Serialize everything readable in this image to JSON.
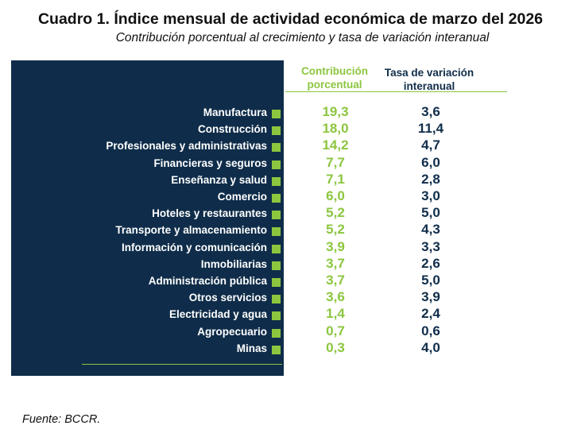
{
  "title": "Cuadro 1. Índice mensual de actividad económica de marzo del 2026",
  "subtitle": "Contribución porcentual al crecimiento y tasa de variación interanual",
  "source": "Fuente: BCCR.",
  "colors": {
    "panel": "#0f2d4a",
    "accent_green": "#8cc63f",
    "rate_text": "#0f2d4a"
  },
  "chart_data": {
    "type": "table",
    "title": "Cuadro 1. Índice mensual de actividad económica de marzo del 2026",
    "subtitle": "Contribución porcentual al crecimiento y tasa de variación interanual",
    "columns": [
      "Contribución porcentual",
      "Tasa de variación interanual"
    ],
    "rows": [
      {
        "label": "Manufactura",
        "contribucion": "19,3",
        "tasa": "3,6"
      },
      {
        "label": "Construcción",
        "contribucion": "18,0",
        "tasa": "11,4"
      },
      {
        "label": "Profesionales y administrativas",
        "contribucion": "14,2",
        "tasa": "4,7"
      },
      {
        "label": "Financieras y seguros",
        "contribucion": "7,7",
        "tasa": "6,0"
      },
      {
        "label": "Enseñanza y salud",
        "contribucion": "7,1",
        "tasa": "2,8"
      },
      {
        "label": "Comercio",
        "contribucion": "6,0",
        "tasa": "3,0"
      },
      {
        "label": "Hoteles y restaurantes",
        "contribucion": "5,2",
        "tasa": "5,0"
      },
      {
        "label": "Transporte y almacenamiento",
        "contribucion": "5,2",
        "tasa": "4,3"
      },
      {
        "label": "Información y comunicación",
        "contribucion": "3,9",
        "tasa": "3,3"
      },
      {
        "label": "Inmobiliarias",
        "contribucion": "3,7",
        "tasa": "2,6"
      },
      {
        "label": "Administración pública",
        "contribucion": "3,7",
        "tasa": "5,0"
      },
      {
        "label": "Otros servicios",
        "contribucion": "3,6",
        "tasa": "3,9"
      },
      {
        "label": "Electricidad y agua",
        "contribucion": "1,4",
        "tasa": "2,4"
      },
      {
        "label": "Agropecuario",
        "contribucion": "0,7",
        "tasa": "0,6"
      },
      {
        "label": "Minas",
        "contribucion": "0,3",
        "tasa": "4,0"
      }
    ]
  }
}
